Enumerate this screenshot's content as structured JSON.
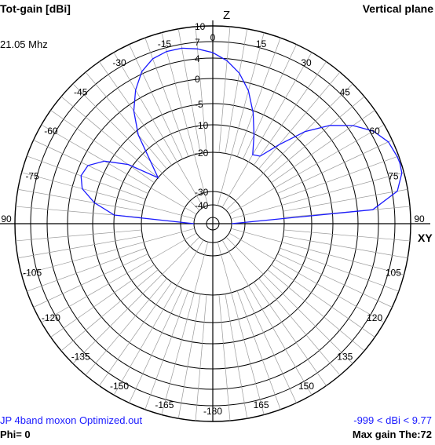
{
  "header": {
    "title": "Tot-gain [dBi]",
    "plane": "Vertical plane",
    "frequency": "21.05 Mhz"
  },
  "footer": {
    "filename": "JP 4band moxon Optimized.out",
    "phi": "Phi= 0",
    "range": "-999 < dBi < 9.77",
    "max_gain": "Max gain The:72"
  },
  "axes": {
    "top_marker": "Z",
    "right_marker": "XY",
    "angle_labels": [
      {
        "text": "0",
        "deg": 0
      },
      {
        "text": "15",
        "deg": 15
      },
      {
        "text": "30",
        "deg": 30
      },
      {
        "text": "45",
        "deg": 45
      },
      {
        "text": "60",
        "deg": 60
      },
      {
        "text": "75",
        "deg": 75
      },
      {
        "text": "90",
        "deg": 90
      },
      {
        "text": "105",
        "deg": 105
      },
      {
        "text": "120",
        "deg": 120
      },
      {
        "text": "135",
        "deg": 135
      },
      {
        "text": "150",
        "deg": 150
      },
      {
        "text": "165",
        "deg": 165
      },
      {
        "text": "-180",
        "deg": 180
      },
      {
        "text": "-165",
        "deg": 195
      },
      {
        "text": "-150",
        "deg": 210
      },
      {
        "text": "-135",
        "deg": 225
      },
      {
        "text": "-120",
        "deg": 240
      },
      {
        "text": "-105",
        "deg": 255
      },
      {
        "text": "90",
        "deg": 270
      },
      {
        "text": "-75",
        "deg": 285
      },
      {
        "text": "-60",
        "deg": 300
      },
      {
        "text": "-45",
        "deg": 315
      },
      {
        "text": "-30",
        "deg": 330
      },
      {
        "text": "-15",
        "deg": 345
      }
    ],
    "ring_labels": [
      "10",
      "7",
      "4",
      "0",
      "-5",
      "-10",
      "-20",
      "-30",
      "-40"
    ]
  },
  "colors": {
    "grid": "#000000",
    "pattern": "#1a1aff",
    "background": "#ffffff"
  },
  "chart_data": {
    "type": "polar",
    "title": "Tot-gain [dBi]",
    "units": "dBi",
    "angle_unit": "degrees from zenith (Z)",
    "max_gain_dbi": 9.77,
    "max_gain_theta": 72,
    "rings_dbi": [
      10,
      7,
      4,
      0,
      -5,
      -10,
      -20,
      -30,
      -40
    ],
    "pattern": {
      "name": "JP 4band moxon Optimized.out",
      "theta": [
        -90,
        -85,
        -80,
        -75,
        -70,
        -65,
        -60,
        -55,
        -50,
        -45,
        -40,
        -35,
        -30,
        -25,
        -20,
        -15,
        -10,
        -5,
        0,
        5,
        10,
        15,
        20,
        25,
        30,
        35,
        40,
        45,
        50,
        55,
        60,
        65,
        70,
        72,
        75,
        80,
        85,
        90
      ],
      "gain_dbi": [
        -40,
        -10,
        -5,
        -2,
        -1,
        -1.5,
        -4,
        -9,
        -20,
        -14,
        -6,
        -1.5,
        1.8,
        4.4,
        5.8,
        6.3,
        6.3,
        5.8,
        5,
        3.6,
        1.5,
        -1.5,
        -5.5,
        -10.5,
        -17,
        -16,
        -9,
        -3,
        1.5,
        5,
        7.6,
        9.2,
        9.7,
        9.77,
        9.6,
        8,
        3,
        -40
      ]
    }
  }
}
